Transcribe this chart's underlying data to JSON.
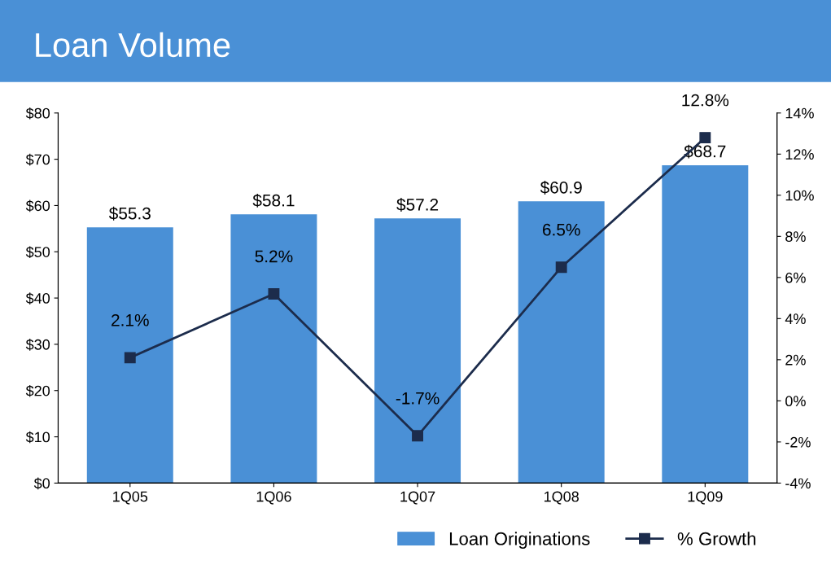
{
  "chart_data": {
    "type": "bar",
    "title": "Loan Volume",
    "categories": [
      "1Q05",
      "1Q06",
      "1Q07",
      "1Q08",
      "1Q09"
    ],
    "series": [
      {
        "name": "Loan Originations",
        "color": "#4a90d6",
        "values": [
          55.3,
          58.1,
          57.2,
          60.9,
          68.7
        ],
        "value_labels": [
          "$55.3",
          "$58.1",
          "$57.2",
          "$60.9",
          "$68.7"
        ]
      },
      {
        "name": "% Growth",
        "type": "line",
        "axis": "y2",
        "color": "#1c2c4c",
        "marker": "square",
        "values": [
          2.1,
          5.2,
          -1.7,
          6.5,
          12.8
        ],
        "value_labels": [
          "2.1%",
          "5.2%",
          "-1.7%",
          "6.5%",
          "12.8%"
        ]
      }
    ],
    "ylim": [
      0,
      80
    ],
    "yticks": [
      {
        "value": 0,
        "label": "$0"
      },
      {
        "value": 10,
        "label": "$10"
      },
      {
        "value": 20,
        "label": "$20"
      },
      {
        "value": 30,
        "label": "$30"
      },
      {
        "value": 40,
        "label": "$40"
      },
      {
        "value": 50,
        "label": "$50"
      },
      {
        "value": 60,
        "label": "$60"
      },
      {
        "value": 70,
        "label": "$70"
      },
      {
        "value": 80,
        "label": "$80"
      }
    ],
    "y2lim": [
      -4,
      14
    ],
    "y2ticks": [
      {
        "value": -4,
        "label": "-4%"
      },
      {
        "value": -2,
        "label": "-2%"
      },
      {
        "value": 0,
        "label": "0%"
      },
      {
        "value": 2,
        "label": "2%"
      },
      {
        "value": 4,
        "label": "4%"
      },
      {
        "value": 6,
        "label": "6%"
      },
      {
        "value": 8,
        "label": "8%"
      },
      {
        "value": 10,
        "label": "10%"
      },
      {
        "value": 12,
        "label": "12%"
      },
      {
        "value": 14,
        "label": "14%"
      }
    ],
    "grid": false,
    "legend": "bottom right"
  }
}
